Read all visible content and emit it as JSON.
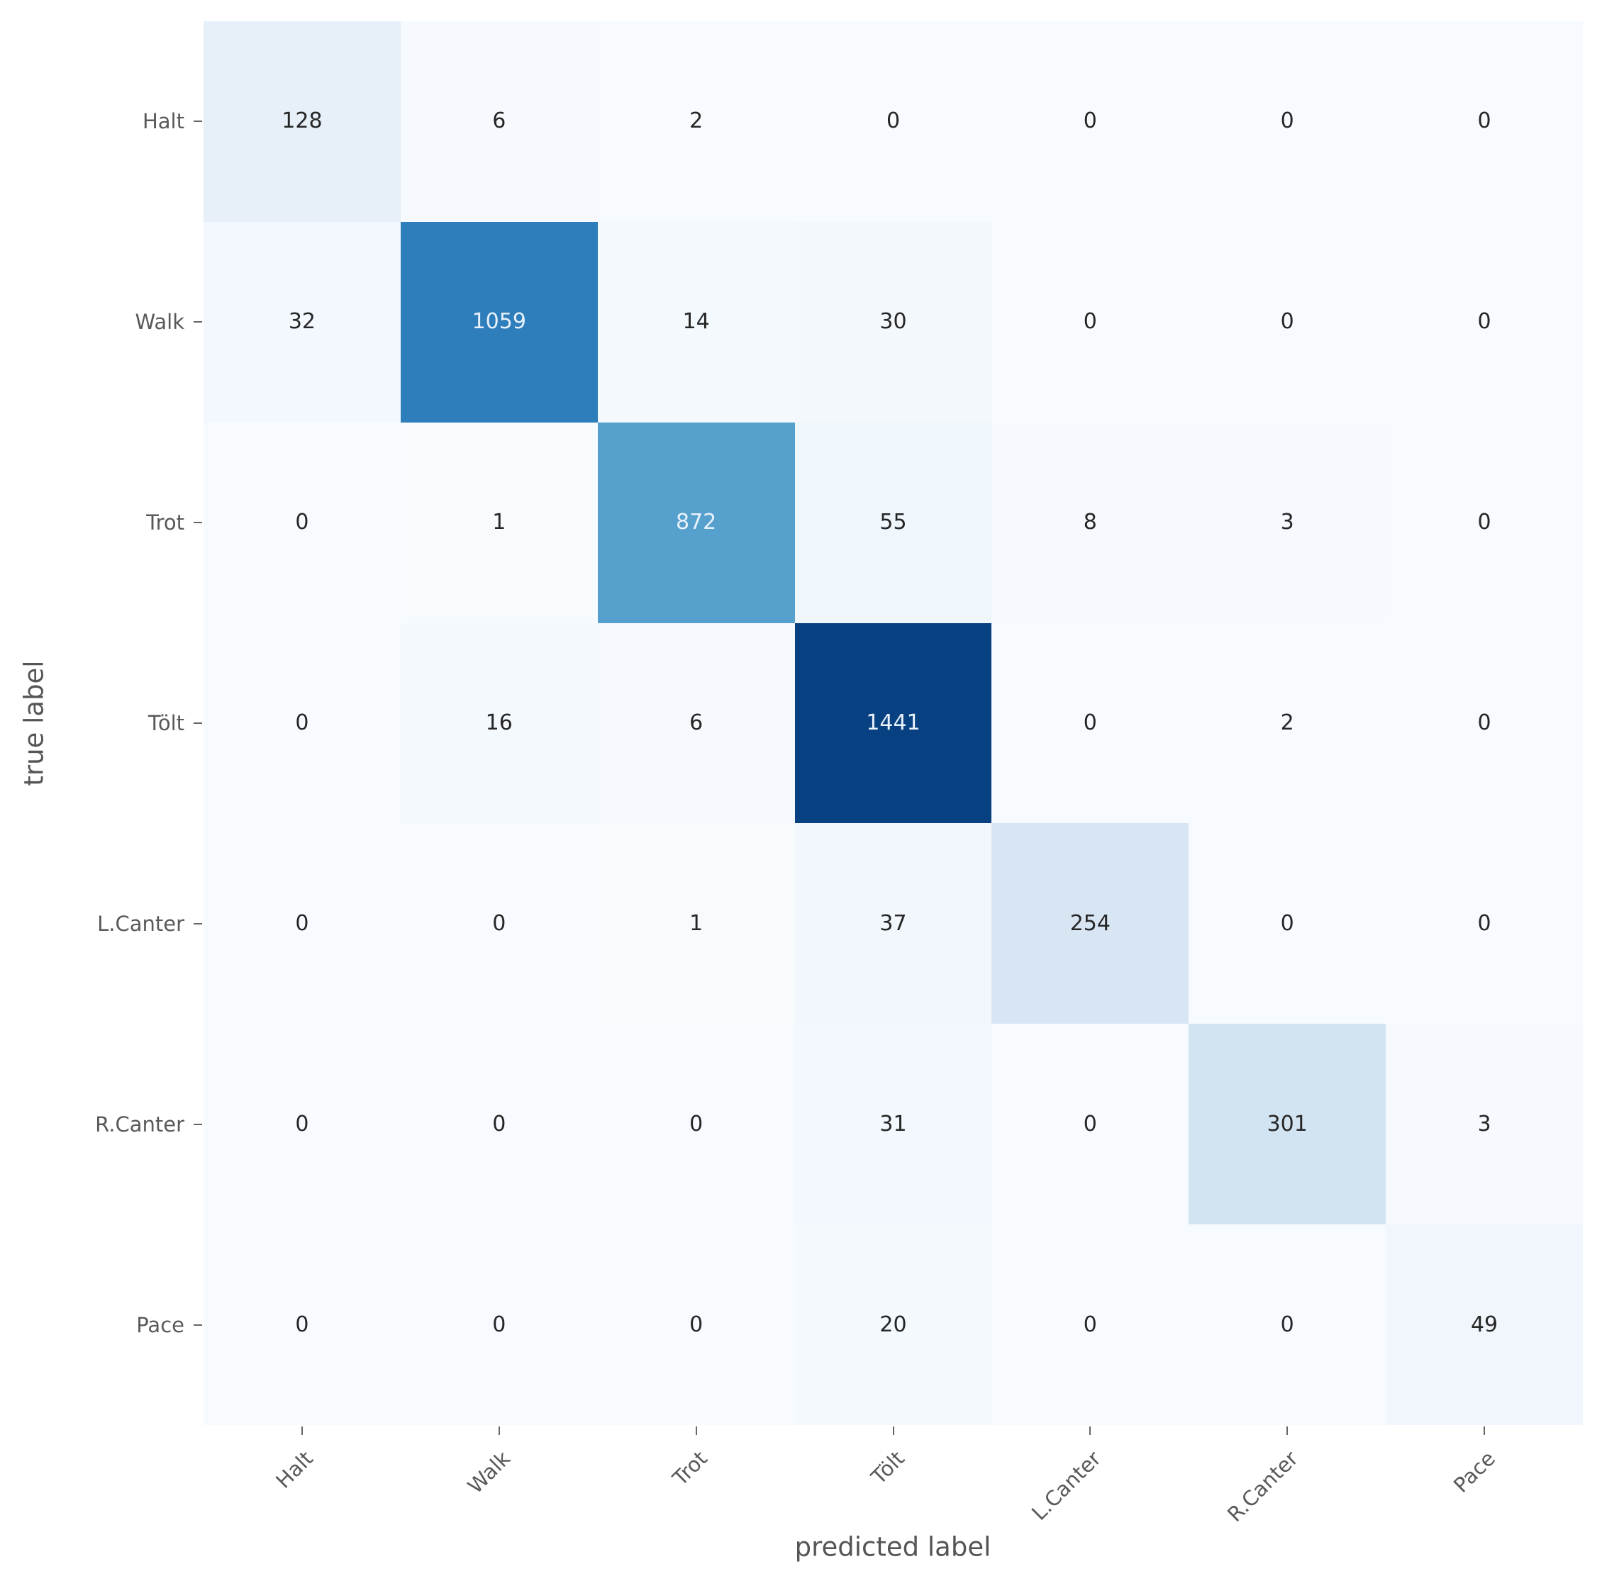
{
  "figure": {
    "kind": "confusion-matrix",
    "x_axis_title": "predicted label",
    "y_axis_title": "true label"
  },
  "chart_data": {
    "type": "heatmap",
    "title": "",
    "xlabel": "predicted label",
    "ylabel": "true label",
    "x_categories": [
      "Halt",
      "Walk",
      "Trot",
      "Tölt",
      "L.Canter",
      "R.Canter",
      "Pace"
    ],
    "y_categories": [
      "Halt",
      "Walk",
      "Trot",
      "Tölt",
      "L.Canter",
      "R.Canter",
      "Pace"
    ],
    "matrix": [
      [
        128,
        6,
        2,
        0,
        0,
        0,
        0
      ],
      [
        32,
        1059,
        14,
        30,
        0,
        0,
        0
      ],
      [
        0,
        1,
        872,
        55,
        8,
        3,
        0
      ],
      [
        0,
        16,
        6,
        1441,
        0,
        2,
        0
      ],
      [
        0,
        0,
        1,
        37,
        254,
        0,
        0
      ],
      [
        0,
        0,
        0,
        31,
        0,
        301,
        3
      ],
      [
        0,
        0,
        0,
        20,
        0,
        0,
        49
      ]
    ],
    "colormap": "Blues",
    "vmin": 0,
    "vmax": 1441,
    "grid": false,
    "legend": "none",
    "cell_colors": [
      [
        "#e7f0f9",
        "#f6fafe",
        "#f7fafe",
        "#f7fbff",
        "#f7fbff",
        "#f7fbff",
        "#f7fbff"
      ],
      [
        "#f2f8fd",
        "#2e7ebc",
        "#f4f9fe",
        "#f3f8fd",
        "#f7fbff",
        "#f7fbff",
        "#f7fbff"
      ],
      [
        "#f7fbff",
        "#f7fbfe",
        "#55a0cd",
        "#eff6fc",
        "#f6f9fe",
        "#f6fafe",
        "#f7fbff"
      ],
      [
        "#f7fbff",
        "#f4f9fe",
        "#f6fafe",
        "#084181",
        "#f7fbff",
        "#f7fafe",
        "#f7fbff"
      ],
      [
        "#f7fbff",
        "#f7fbff",
        "#f7fbfe",
        "#f2f7fd",
        "#d8e6f4",
        "#f7fbff",
        "#f7fbff"
      ],
      [
        "#f7fbff",
        "#f7fbff",
        "#f7fbff",
        "#f2f8fd",
        "#f7fbff",
        "#d2e3f2",
        "#f6fafe"
      ],
      [
        "#f7fbff",
        "#f7fbff",
        "#f7fbff",
        "#f4f9fd",
        "#f7fbff",
        "#f7fbff",
        "#f0f6fc"
      ]
    ],
    "value_text_dark_color": "#262626",
    "value_text_light_color": "#e9f1fa",
    "light_text_threshold": 600,
    "tick_color": "#666666",
    "tick_label_color": "#595959",
    "axis_title_color": "#555555",
    "background_color": "#ffffff"
  }
}
